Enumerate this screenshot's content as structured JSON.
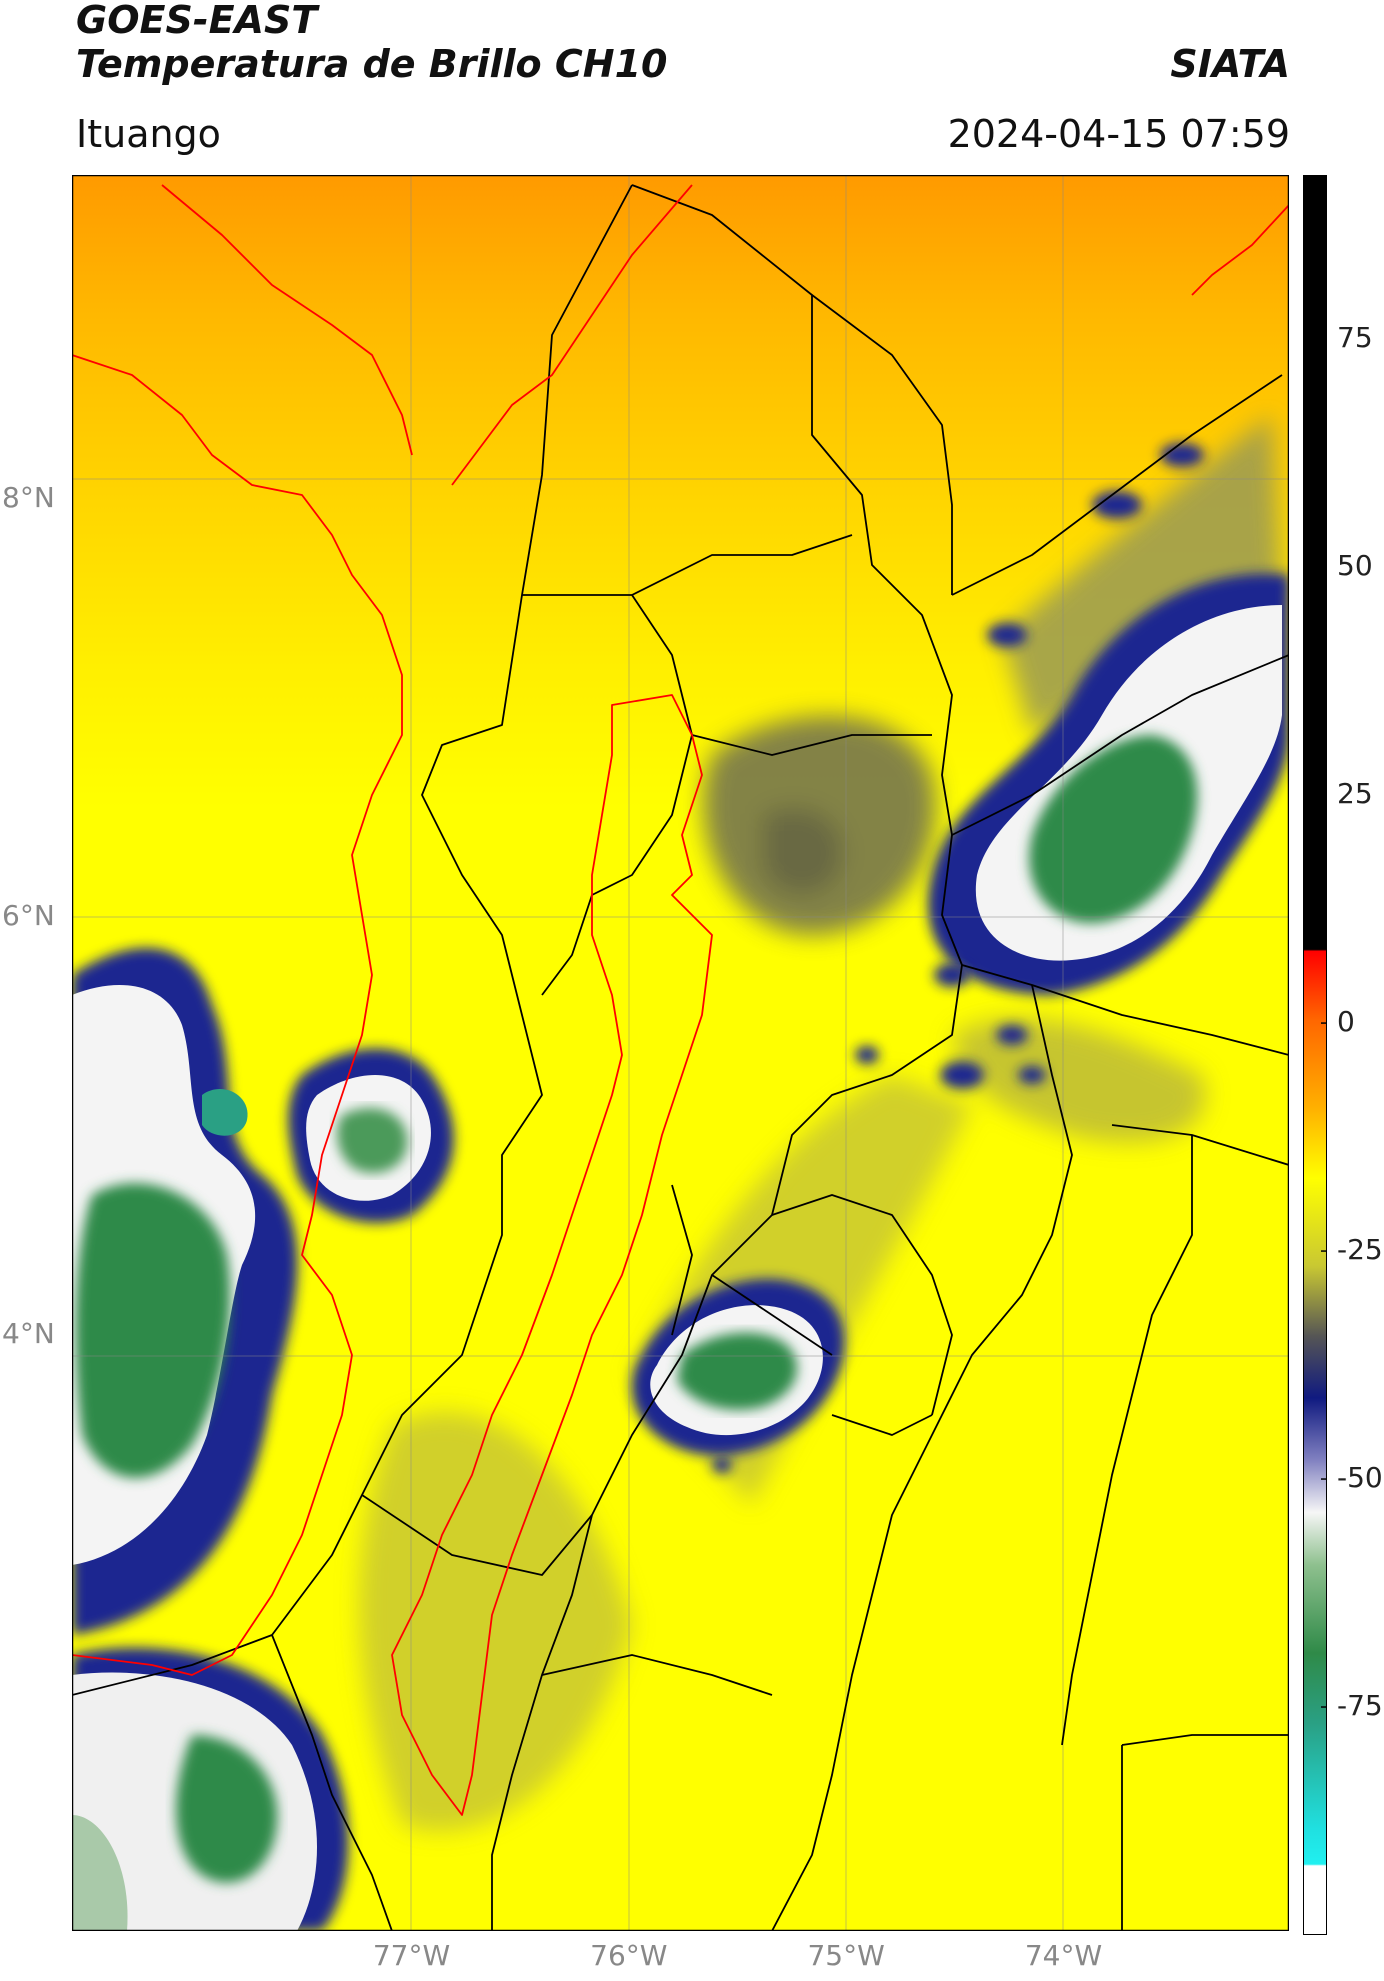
{
  "header": {
    "satellite": "GOES-EAST",
    "product": "Temperatura de Brillo CH10",
    "brand": "SIATA",
    "location": "Ituango",
    "datetime": "2024-04-15 07:59"
  },
  "map": {
    "lon_range": [
      -78.55,
      -72.95
    ],
    "lat_range": [
      1.15,
      9.55
    ],
    "lat_labels": [
      {
        "value": 8,
        "text": "8°N"
      },
      {
        "value": 6,
        "text": "6°N"
      },
      {
        "value": 4,
        "text": "4°N"
      }
    ],
    "lon_labels": [
      {
        "value": -77,
        "text": "77°W"
      },
      {
        "value": -76,
        "text": "76°W"
      },
      {
        "value": -75,
        "text": "75°W"
      },
      {
        "value": -74,
        "text": "74°W"
      }
    ],
    "colors": {
      "warm_orange": "#ff9900",
      "yellow": "#ffff00",
      "olive": "#c9c832",
      "gray": "#5a5a5a",
      "navy": "#101a80",
      "white": "#f6f6f6",
      "green": "#2f8a48",
      "teal": "#2aa084",
      "boundary_black": "#000000",
      "boundary_red": "#ff0000"
    }
  },
  "colorbar": {
    "range": [
      -100,
      93
    ],
    "ticks": [
      {
        "value": 75,
        "text": "75"
      },
      {
        "value": 50,
        "text": "50"
      },
      {
        "value": 25,
        "text": "25"
      },
      {
        "value": 0,
        "text": "0"
      },
      {
        "value": -25,
        "text": "-25"
      },
      {
        "value": -50,
        "text": "-50"
      },
      {
        "value": -75,
        "text": "-75"
      }
    ]
  }
}
